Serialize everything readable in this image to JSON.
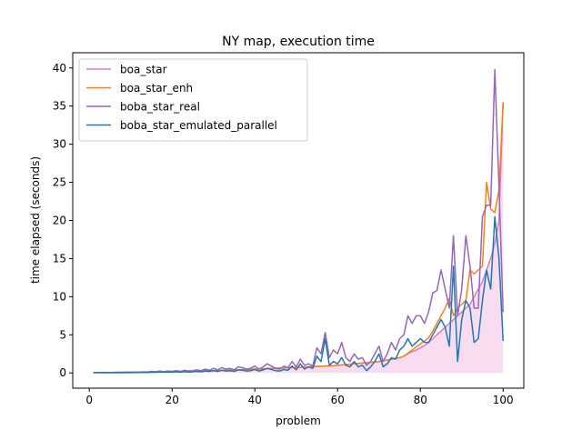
{
  "chart_data": {
    "type": "line",
    "title": "NY map, execution time",
    "xlabel": "problem",
    "ylabel": "time elapsed (seconds)",
    "xlim": [
      -4,
      105
    ],
    "ylim": [
      -2,
      42
    ],
    "x_ticks": [
      0,
      20,
      40,
      60,
      80,
      100
    ],
    "y_ticks": [
      0,
      5,
      10,
      15,
      20,
      25,
      30,
      35,
      40
    ],
    "legend_position": "upper-left",
    "x": [
      1,
      2,
      3,
      4,
      5,
      6,
      7,
      8,
      9,
      10,
      11,
      12,
      13,
      14,
      15,
      16,
      17,
      18,
      19,
      20,
      21,
      22,
      23,
      24,
      25,
      26,
      27,
      28,
      29,
      30,
      31,
      32,
      33,
      34,
      35,
      36,
      37,
      38,
      39,
      40,
      41,
      42,
      43,
      44,
      45,
      46,
      47,
      48,
      49,
      50,
      51,
      52,
      53,
      54,
      55,
      56,
      57,
      58,
      59,
      60,
      61,
      62,
      63,
      64,
      65,
      66,
      67,
      68,
      69,
      70,
      71,
      72,
      73,
      74,
      75,
      76,
      77,
      78,
      79,
      80,
      81,
      82,
      83,
      84,
      85,
      86,
      87,
      88,
      89,
      90,
      91,
      92,
      93,
      94,
      95,
      96,
      97,
      98,
      99,
      100
    ],
    "series": [
      {
        "name": "boa_star",
        "color": "#e377c2",
        "fill": true,
        "values": [
          0.05,
          0.05,
          0.06,
          0.06,
          0.06,
          0.07,
          0.07,
          0.08,
          0.08,
          0.09,
          0.1,
          0.1,
          0.11,
          0.12,
          0.13,
          0.14,
          0.15,
          0.16,
          0.17,
          0.18,
          0.19,
          0.2,
          0.21,
          0.22,
          0.23,
          0.24,
          0.25,
          0.26,
          0.28,
          0.3,
          0.32,
          0.34,
          0.36,
          0.38,
          0.4,
          0.42,
          0.44,
          0.46,
          0.48,
          0.5,
          0.52,
          0.55,
          0.58,
          0.6,
          0.62,
          0.64,
          0.66,
          0.68,
          0.7,
          0.72,
          0.75,
          0.78,
          0.8,
          0.82,
          0.85,
          0.88,
          0.9,
          0.92,
          0.95,
          1.0,
          1.05,
          1.1,
          1.15,
          1.2,
          1.25,
          1.3,
          1.35,
          1.4,
          1.45,
          1.5,
          1.6,
          1.7,
          1.8,
          1.9,
          2.0,
          2.2,
          2.5,
          2.8,
          3.0,
          3.3,
          3.6,
          4.0,
          4.5,
          5.0,
          5.5,
          6.0,
          6.5,
          7.0,
          7.5,
          8.0,
          8.5,
          9.0,
          10.0,
          11.0,
          12.0,
          13.5,
          15.0,
          17.0,
          20.0,
          35.5
        ]
      },
      {
        "name": "boa_star_enh",
        "color": "#ff7f0e",
        "fill": false,
        "values": [
          0.05,
          0.05,
          0.06,
          0.06,
          0.06,
          0.07,
          0.07,
          0.08,
          0.08,
          0.09,
          0.1,
          0.1,
          0.11,
          0.12,
          0.13,
          0.14,
          0.15,
          0.16,
          0.17,
          0.18,
          0.19,
          0.2,
          0.21,
          0.22,
          0.23,
          0.24,
          0.25,
          0.26,
          0.28,
          0.3,
          0.32,
          0.34,
          0.36,
          0.38,
          0.4,
          0.42,
          0.44,
          0.46,
          0.48,
          0.5,
          0.52,
          0.55,
          0.58,
          0.6,
          0.62,
          0.64,
          0.66,
          0.68,
          0.7,
          0.72,
          0.75,
          0.78,
          0.8,
          0.82,
          0.85,
          0.88,
          0.9,
          0.92,
          0.95,
          1.0,
          1.05,
          1.1,
          1.15,
          1.2,
          1.25,
          1.3,
          1.35,
          1.4,
          1.45,
          1.5,
          1.6,
          1.7,
          1.8,
          1.9,
          2.0,
          2.2,
          2.6,
          3.0,
          3.4,
          3.8,
          4.2,
          4.6,
          5.5,
          6.5,
          7.5,
          8.5,
          9.8,
          7.5,
          8.5,
          9.0,
          9.5,
          13.5,
          13.0,
          13.5,
          14.0,
          25.0,
          21.5,
          21.0,
          24.0,
          35.5
        ]
      },
      {
        "name": "boba_star_real",
        "color": "#9467bd",
        "fill": false,
        "values": [
          0.05,
          0.06,
          0.05,
          0.07,
          0.06,
          0.05,
          0.08,
          0.07,
          0.1,
          0.09,
          0.12,
          0.1,
          0.15,
          0.12,
          0.2,
          0.15,
          0.25,
          0.18,
          0.25,
          0.2,
          0.3,
          0.2,
          0.35,
          0.25,
          0.3,
          0.4,
          0.3,
          0.5,
          0.35,
          0.6,
          0.4,
          0.7,
          0.5,
          0.6,
          0.4,
          0.8,
          0.7,
          0.5,
          0.6,
          0.9,
          0.5,
          0.8,
          1.2,
          0.9,
          0.6,
          0.5,
          0.9,
          0.7,
          1.5,
          0.8,
          1.8,
          1.0,
          1.2,
          0.9,
          3.3,
          2.5,
          5.3,
          2.0,
          3.0,
          2.5,
          4.0,
          2.0,
          1.5,
          2.5,
          1.8,
          2.0,
          1.0,
          1.5,
          2.5,
          3.5,
          1.5,
          2.5,
          4.0,
          3.0,
          4.5,
          5.0,
          7.5,
          6.5,
          7.5,
          7.5,
          6.5,
          8.0,
          10.5,
          10.8,
          13.5,
          11.0,
          8.5,
          18.0,
          7.5,
          11.0,
          18.0,
          14.0,
          8.5,
          8.5,
          20.5,
          22.0,
          22.0,
          39.8,
          24.5,
          8.0
        ]
      },
      {
        "name": "boba_star_emulated_parallel",
        "color": "#1f77b4",
        "fill": false,
        "values": [
          0.02,
          0.03,
          0.02,
          0.03,
          0.03,
          0.02,
          0.04,
          0.03,
          0.05,
          0.04,
          0.06,
          0.05,
          0.08,
          0.06,
          0.1,
          0.08,
          0.12,
          0.1,
          0.12,
          0.1,
          0.15,
          0.1,
          0.18,
          0.12,
          0.15,
          0.2,
          0.15,
          0.25,
          0.2,
          0.3,
          0.2,
          0.35,
          0.25,
          0.3,
          0.2,
          0.4,
          0.35,
          0.25,
          0.3,
          0.45,
          0.25,
          0.4,
          0.6,
          0.45,
          0.3,
          0.25,
          0.45,
          0.35,
          0.9,
          0.4,
          1.2,
          0.5,
          0.8,
          0.6,
          2.2,
          1.5,
          4.5,
          1.0,
          1.5,
          1.2,
          2.0,
          1.0,
          0.8,
          1.5,
          0.8,
          1.0,
          0.3,
          0.8,
          1.5,
          2.5,
          0.8,
          1.2,
          2.0,
          1.8,
          3.0,
          3.5,
          4.5,
          3.5,
          4.0,
          4.5,
          4.0,
          4.0,
          5.0,
          6.0,
          7.0,
          6.0,
          3.5,
          14.0,
          1.5,
          7.0,
          9.5,
          8.5,
          4.0,
          4.5,
          9.5,
          13.5,
          11.0,
          20.5,
          15.0,
          4.2
        ]
      }
    ]
  }
}
